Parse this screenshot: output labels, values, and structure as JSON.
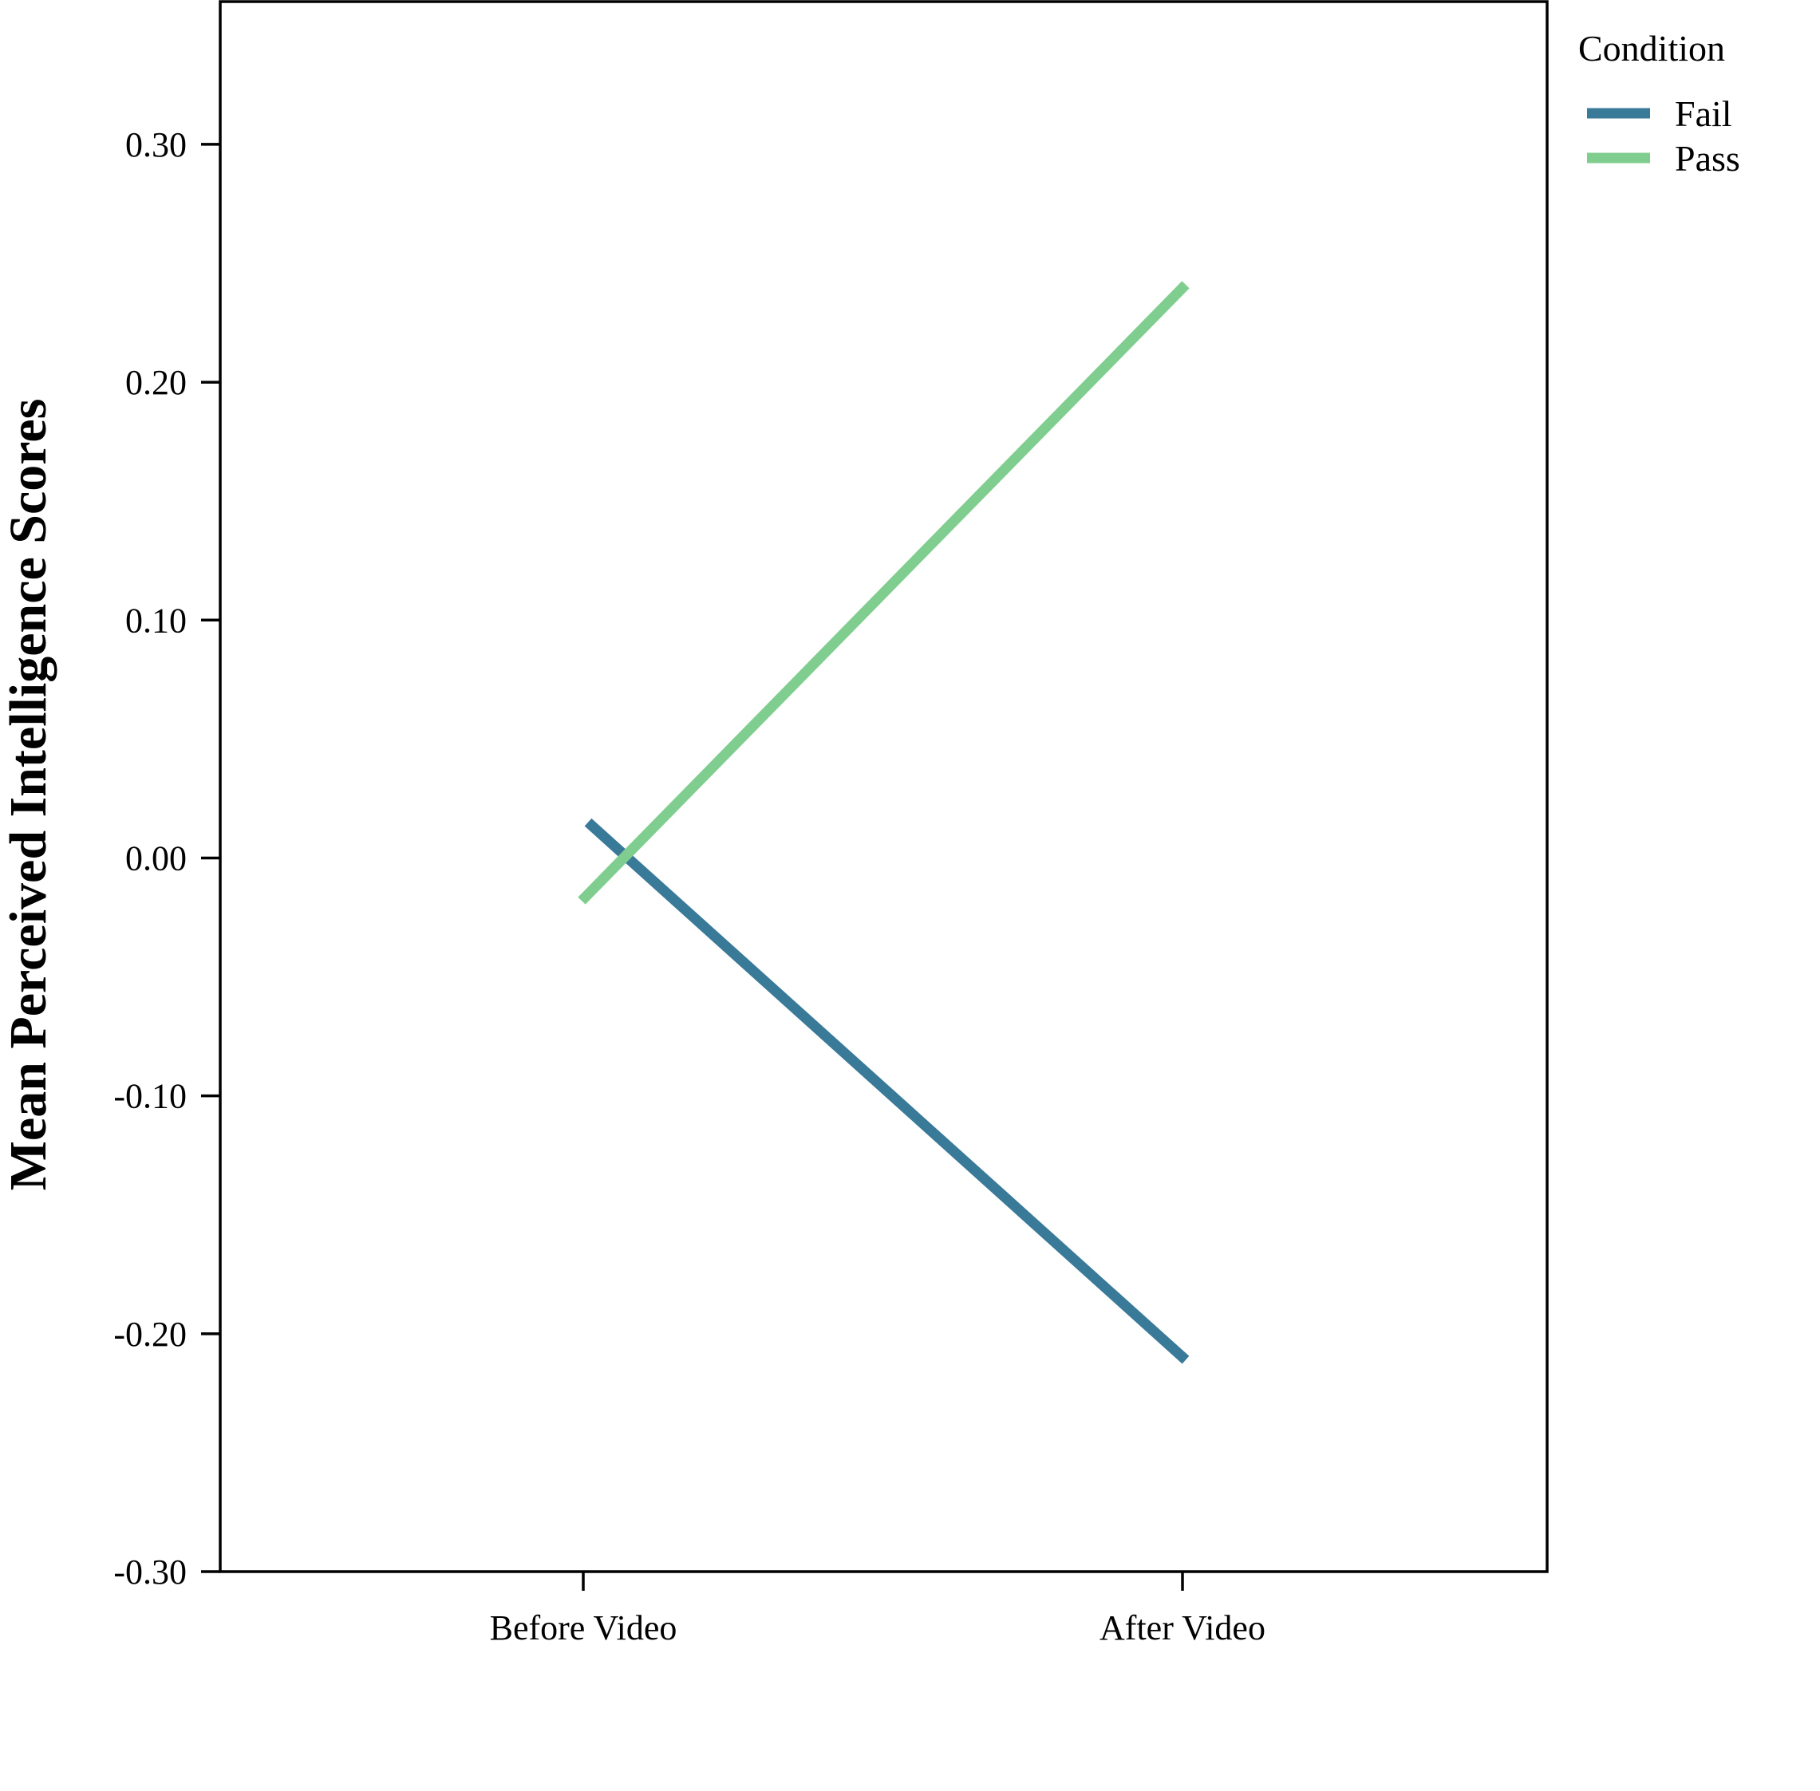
{
  "chart_data": {
    "type": "line",
    "title": "",
    "xlabel": "",
    "ylabel": "Mean Perceived Intelligence Scores",
    "categories": [
      "Before Video",
      "After Video"
    ],
    "ylim": [
      -0.3,
      0.36
    ],
    "yticks": [
      -0.3,
      -0.2,
      -0.1,
      0.0,
      0.1,
      0.2,
      0.3
    ],
    "ytick_labels": [
      "-0.30",
      "-0.20",
      "-0.10",
      "0.00",
      "0.10",
      "0.20",
      "0.30"
    ],
    "grid": false,
    "legend": {
      "title": "Condition",
      "placement": "outside-top-right"
    },
    "series": [
      {
        "name": "Fail",
        "values": [
          0.015,
          -0.211
        ],
        "color": "#3a7a99"
      },
      {
        "name": "Pass",
        "values": [
          -0.018,
          0.241
        ],
        "color": "#7fce8f"
      }
    ]
  }
}
